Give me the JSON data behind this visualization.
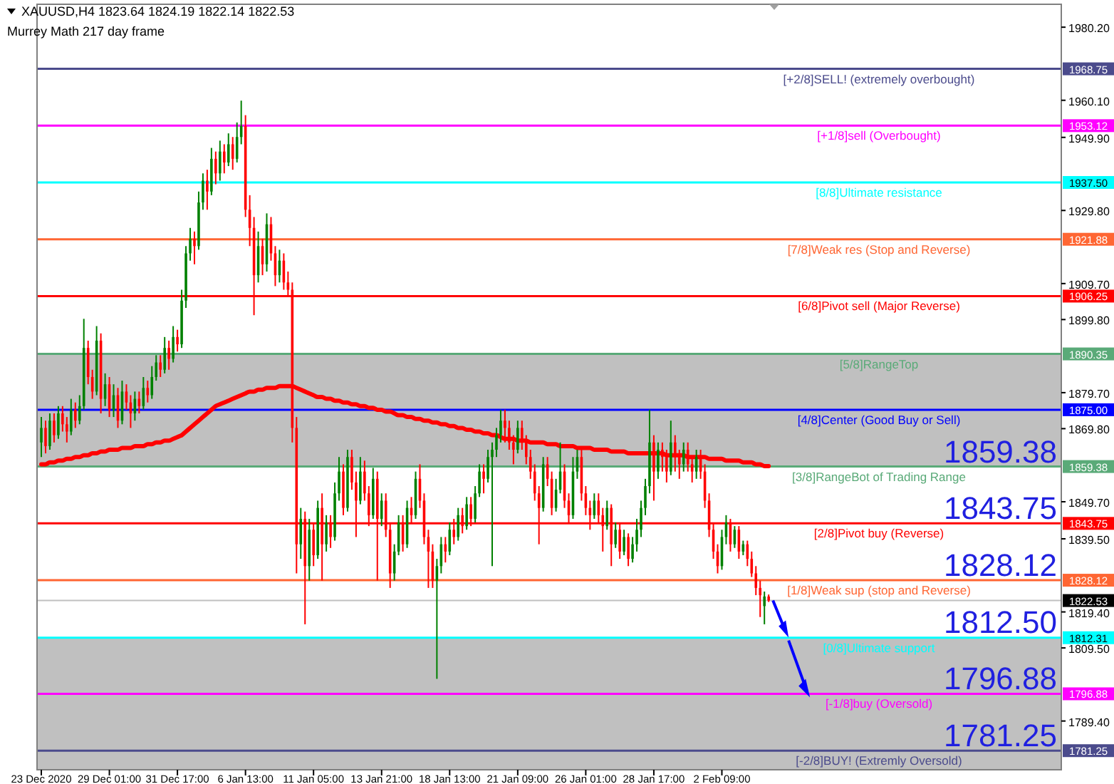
{
  "chart_data": {
    "type": "candlestick",
    "title": "XAUUSD,H4  1823.64 1824.19 1822.14 1822.53",
    "subtitle": "Murrey Math 217 day frame",
    "categories": [
      "23 Dec 2020",
      null,
      null,
      null,
      null,
      null,
      null,
      null,
      null,
      null,
      null,
      null,
      null,
      null,
      null,
      null,
      "29 Dec 01:00",
      null,
      null,
      null,
      null,
      null,
      null,
      null,
      null,
      null,
      null,
      null,
      null,
      null,
      null,
      null,
      "31 Dec 17:00",
      null,
      null,
      null,
      null,
      null,
      null,
      null,
      null,
      null,
      null,
      null,
      null,
      null,
      null,
      null,
      "6 Jan 13:00",
      null,
      null,
      null,
      null,
      null,
      null,
      null,
      null,
      null,
      null,
      null,
      null,
      null,
      null,
      null,
      "11 Jan 05:00",
      null,
      null,
      null,
      null,
      null,
      null,
      null,
      null,
      null,
      null,
      null,
      null,
      null,
      null,
      null,
      "13 Jan 21:00",
      null,
      null,
      null,
      null,
      null,
      null,
      null,
      null,
      null,
      null,
      null,
      null,
      null,
      null,
      null,
      "18 Jan 13:00",
      null,
      null,
      null,
      null,
      null,
      null,
      null,
      null,
      null,
      null,
      null,
      null,
      null,
      null,
      null,
      "21 Jan 09:00",
      null,
      null,
      null,
      null,
      null,
      null,
      null,
      null,
      null,
      null,
      null,
      null,
      null,
      null,
      null,
      "26 Jan 01:00",
      null,
      null,
      null,
      null,
      null,
      null,
      null,
      null,
      null,
      null,
      null,
      null,
      null,
      null,
      null,
      "28 Jan 17:00",
      null,
      null,
      null,
      null,
      null,
      null,
      null,
      null,
      null,
      null,
      null,
      null,
      null,
      null,
      null,
      "2 Feb 09:00",
      null,
      null,
      null,
      null,
      null,
      null,
      null,
      null,
      null,
      null,
      null
    ],
    "ohlc": [
      [
        1866,
        1873,
        1862,
        1870
      ],
      [
        1870,
        1872,
        1863,
        1865
      ],
      [
        1865,
        1874,
        1864,
        1872
      ],
      [
        1872,
        1874,
        1866,
        1868
      ],
      [
        1868,
        1876,
        1867,
        1874
      ],
      [
        1874,
        1876,
        1869,
        1871
      ],
      [
        1871,
        1873,
        1866,
        1869
      ],
      [
        1869,
        1878,
        1868,
        1875
      ],
      [
        1875,
        1877,
        1870,
        1872
      ],
      [
        1872,
        1879,
        1871,
        1876
      ],
      [
        1876,
        1900,
        1875,
        1892
      ],
      [
        1892,
        1894,
        1882,
        1884
      ],
      [
        1884,
        1886,
        1878,
        1880
      ],
      [
        1880,
        1898,
        1879,
        1894
      ],
      [
        1894,
        1896,
        1874,
        1878
      ],
      [
        1878,
        1885,
        1876,
        1882
      ],
      [
        1882,
        1884,
        1873,
        1875
      ],
      [
        1875,
        1882,
        1873,
        1879
      ],
      [
        1879,
        1881,
        1870,
        1872
      ],
      [
        1872,
        1883,
        1871,
        1880
      ],
      [
        1880,
        1882,
        1875,
        1877
      ],
      [
        1877,
        1879,
        1870,
        1874
      ],
      [
        1874,
        1880,
        1872,
        1878
      ],
      [
        1878,
        1880,
        1874,
        1876
      ],
      [
        1876,
        1884,
        1875,
        1881
      ],
      [
        1881,
        1883,
        1877,
        1879
      ],
      [
        1879,
        1887,
        1878,
        1884
      ],
      [
        1884,
        1890,
        1883,
        1888
      ],
      [
        1888,
        1890,
        1884,
        1886
      ],
      [
        1886,
        1895,
        1885,
        1892
      ],
      [
        1892,
        1894,
        1886,
        1889
      ],
      [
        1889,
        1898,
        1888,
        1895
      ],
      [
        1895,
        1897,
        1891,
        1893
      ],
      [
        1893,
        1908,
        1892,
        1905
      ],
      [
        1905,
        1920,
        1903,
        1918
      ],
      [
        1918,
        1925,
        1916,
        1922
      ],
      [
        1922,
        1924,
        1915,
        1920
      ],
      [
        1920,
        1935,
        1919,
        1932
      ],
      [
        1932,
        1940,
        1930,
        1938
      ],
      [
        1938,
        1941,
        1930,
        1935
      ],
      [
        1935,
        1947,
        1934,
        1944
      ],
      [
        1944,
        1946,
        1937,
        1940
      ],
      [
        1940,
        1949,
        1938,
        1946
      ],
      [
        1946,
        1948,
        1940,
        1943
      ],
      [
        1943,
        1951,
        1942,
        1948
      ],
      [
        1948,
        1950,
        1941,
        1944
      ],
      [
        1944,
        1954,
        1943,
        1950
      ],
      [
        1950,
        1960,
        1948,
        1953
      ],
      [
        1953,
        1956,
        1928,
        1930
      ],
      [
        1930,
        1934,
        1920,
        1925
      ],
      [
        1925,
        1928,
        1901,
        1912
      ],
      [
        1912,
        1924,
        1910,
        1920
      ],
      [
        1920,
        1922,
        1912,
        1915
      ],
      [
        1915,
        1929,
        1913,
        1926
      ],
      [
        1926,
        1928,
        1916,
        1918
      ],
      [
        1918,
        1920,
        1909,
        1912
      ],
      [
        1912,
        1919,
        1910,
        1916
      ],
      [
        1916,
        1918,
        1908,
        1910
      ],
      [
        1910,
        1913,
        1906,
        1908
      ],
      [
        1908,
        1910,
        1866,
        1870
      ],
      [
        1870,
        1873,
        1830,
        1838
      ],
      [
        1838,
        1848,
        1834,
        1845
      ],
      [
        1845,
        1847,
        1816,
        1832
      ],
      [
        1832,
        1845,
        1828,
        1842
      ],
      [
        1842,
        1844,
        1832,
        1835
      ],
      [
        1835,
        1850,
        1834,
        1848
      ],
      [
        1848,
        1852,
        1828,
        1838
      ],
      [
        1838,
        1846,
        1836,
        1844
      ],
      [
        1844,
        1846,
        1837,
        1840
      ],
      [
        1840,
        1855,
        1839,
        1852
      ],
      [
        1852,
        1862,
        1850,
        1858
      ],
      [
        1858,
        1860,
        1846,
        1848
      ],
      [
        1848,
        1864,
        1847,
        1862
      ],
      [
        1862,
        1864,
        1853,
        1855
      ],
      [
        1855,
        1858,
        1840,
        1850
      ],
      [
        1850,
        1862,
        1849,
        1858
      ],
      [
        1858,
        1861,
        1850,
        1852
      ],
      [
        1852,
        1854,
        1843,
        1846
      ],
      [
        1846,
        1859,
        1845,
        1856
      ],
      [
        1856,
        1858,
        1828,
        1845
      ],
      [
        1845,
        1852,
        1843,
        1850
      ],
      [
        1850,
        1852,
        1840,
        1842
      ],
      [
        1842,
        1844,
        1826,
        1830
      ],
      [
        1830,
        1838,
        1828,
        1836
      ],
      [
        1836,
        1846,
        1835,
        1844
      ],
      [
        1844,
        1846,
        1836,
        1838
      ],
      [
        1838,
        1850,
        1837,
        1848
      ],
      [
        1848,
        1851,
        1844,
        1846
      ],
      [
        1846,
        1858,
        1845,
        1856
      ],
      [
        1856,
        1860,
        1848,
        1850
      ],
      [
        1850,
        1852,
        1838,
        1840
      ],
      [
        1840,
        1842,
        1826,
        1836
      ],
      [
        1836,
        1838,
        1826,
        1828
      ],
      [
        1828,
        1834,
        1801,
        1832
      ],
      [
        1832,
        1840,
        1830,
        1838
      ],
      [
        1838,
        1840,
        1833,
        1836
      ],
      [
        1836,
        1844,
        1835,
        1842
      ],
      [
        1842,
        1845,
        1838,
        1840
      ],
      [
        1840,
        1848,
        1839,
        1846
      ],
      [
        1846,
        1848,
        1841,
        1843
      ],
      [
        1843,
        1851,
        1842,
        1849
      ],
      [
        1849,
        1851,
        1843,
        1845
      ],
      [
        1845,
        1854,
        1844,
        1852
      ],
      [
        1852,
        1860,
        1851,
        1858
      ],
      [
        1858,
        1860,
        1852,
        1856
      ],
      [
        1856,
        1864,
        1855,
        1862
      ],
      [
        1862,
        1866,
        1832,
        1864
      ],
      [
        1864,
        1870,
        1862,
        1868
      ],
      [
        1868,
        1875,
        1866,
        1872
      ],
      [
        1872,
        1875,
        1866,
        1870
      ],
      [
        1870,
        1872,
        1864,
        1866
      ],
      [
        1866,
        1868,
        1860,
        1864
      ],
      [
        1864,
        1872,
        1863,
        1870
      ],
      [
        1870,
        1872,
        1864,
        1866
      ],
      [
        1866,
        1868,
        1860,
        1862
      ],
      [
        1862,
        1864,
        1856,
        1858
      ],
      [
        1858,
        1860,
        1850,
        1852
      ],
      [
        1852,
        1854,
        1838,
        1848
      ],
      [
        1848,
        1862,
        1847,
        1860
      ],
      [
        1860,
        1862,
        1854,
        1856
      ],
      [
        1856,
        1858,
        1846,
        1848
      ],
      [
        1848,
        1856,
        1847,
        1853
      ],
      [
        1853,
        1866,
        1852,
        1858
      ],
      [
        1858,
        1860,
        1848,
        1850
      ],
      [
        1850,
        1852,
        1844,
        1846
      ],
      [
        1846,
        1862,
        1845,
        1858
      ],
      [
        1858,
        1864,
        1856,
        1862
      ],
      [
        1862,
        1864,
        1850,
        1852
      ],
      [
        1852,
        1854,
        1846,
        1848
      ],
      [
        1848,
        1850,
        1842,
        1846
      ],
      [
        1846,
        1852,
        1845,
        1850
      ],
      [
        1850,
        1852,
        1844,
        1846
      ],
      [
        1846,
        1848,
        1836,
        1843
      ],
      [
        1843,
        1850,
        1842,
        1848
      ],
      [
        1848,
        1849,
        1832,
        1838
      ],
      [
        1838,
        1844,
        1837,
        1842
      ],
      [
        1842,
        1844,
        1834,
        1836
      ],
      [
        1836,
        1842,
        1835,
        1840
      ],
      [
        1840,
        1841,
        1832,
        1834
      ],
      [
        1834,
        1840,
        1833,
        1838
      ],
      [
        1838,
        1845,
        1836,
        1842
      ],
      [
        1842,
        1850,
        1840,
        1848
      ],
      [
        1848,
        1856,
        1846,
        1854
      ],
      [
        1854,
        1875,
        1852,
        1866
      ],
      [
        1866,
        1868,
        1850,
        1858
      ],
      [
        1858,
        1866,
        1856,
        1864
      ],
      [
        1864,
        1866,
        1858,
        1862
      ],
      [
        1862,
        1864,
        1855,
        1858
      ],
      [
        1858,
        1872,
        1857,
        1866
      ],
      [
        1866,
        1868,
        1858,
        1862
      ],
      [
        1862,
        1864,
        1856,
        1860
      ],
      [
        1860,
        1866,
        1858,
        1864
      ],
      [
        1864,
        1866,
        1858,
        1860
      ],
      [
        1860,
        1862,
        1855,
        1858
      ],
      [
        1858,
        1864,
        1856,
        1862
      ],
      [
        1862,
        1864,
        1856,
        1858
      ],
      [
        1858,
        1860,
        1848,
        1850
      ],
      [
        1850,
        1852,
        1840,
        1842
      ],
      [
        1842,
        1844,
        1834,
        1836
      ],
      [
        1836,
        1838,
        1830,
        1832
      ],
      [
        1832,
        1842,
        1831,
        1840
      ],
      [
        1840,
        1846,
        1838,
        1844
      ],
      [
        1844,
        1845,
        1836,
        1838
      ],
      [
        1838,
        1843,
        1837,
        1842
      ],
      [
        1842,
        1843,
        1834,
        1836
      ],
      [
        1836,
        1839,
        1835,
        1838
      ],
      [
        1838,
        1839,
        1832,
        1834
      ],
      [
        1834,
        1836,
        1829,
        1830
      ],
      [
        1830,
        1832,
        1824,
        1826
      ],
      [
        1826,
        1828,
        1818,
        1824
      ],
      [
        1821,
        1825,
        1816,
        1823.64
      ],
      [
        1823.64,
        1824.19,
        1822.14,
        1822.53
      ]
    ],
    "series": [
      {
        "type": "line",
        "color": "#ff0000",
        "values": [
          1860,
          1860,
          1860.5,
          1860.5,
          1861,
          1861,
          1861.5,
          1861.5,
          1862,
          1862,
          1862.5,
          1862.5,
          1863,
          1863,
          1863.5,
          1863.5,
          1864,
          1864,
          1864,
          1864.5,
          1864.5,
          1864.5,
          1865,
          1865,
          1865,
          1865.5,
          1865.5,
          1866,
          1866,
          1866.5,
          1866.5,
          1867,
          1867.5,
          1868,
          1869,
          1870,
          1871,
          1872,
          1873,
          1874,
          1875,
          1876,
          1876.5,
          1877,
          1877.5,
          1878,
          1878.5,
          1879,
          1879.5,
          1880,
          1880,
          1880.5,
          1880.5,
          1881,
          1881,
          1881,
          1881.5,
          1881.5,
          1881.5,
          1881.5,
          1881,
          1880.5,
          1880,
          1879.5,
          1879,
          1878.5,
          1878.5,
          1878,
          1878,
          1877.5,
          1877.5,
          1877,
          1877,
          1876.5,
          1876.5,
          1876,
          1876,
          1875.5,
          1875.5,
          1875,
          1875,
          1874.5,
          1874.5,
          1874,
          1873.5,
          1873.5,
          1873,
          1873,
          1872.5,
          1872.5,
          1872,
          1872,
          1871.5,
          1871.5,
          1871,
          1871,
          1870.5,
          1870.5,
          1870,
          1870,
          1869.5,
          1869.5,
          1869,
          1869,
          1868.5,
          1868.5,
          1868,
          1868,
          1867.5,
          1867,
          1867,
          1867,
          1866.5,
          1866.5,
          1866.5,
          1866,
          1866,
          1866,
          1866,
          1865.5,
          1865.5,
          1865.5,
          1865,
          1865,
          1865,
          1865,
          1864.5,
          1864.5,
          1864.5,
          1864.5,
          1864,
          1864,
          1864,
          1864,
          1863.5,
          1863.5,
          1863.5,
          1863.5,
          1863,
          1863,
          1863,
          1863,
          1863,
          1863,
          1863,
          1863,
          1863,
          1862.5,
          1862.5,
          1862.5,
          1862.5,
          1862.5,
          1862,
          1862,
          1862,
          1862,
          1862,
          1861.5,
          1861.5,
          1861.5,
          1861.5,
          1861,
          1861,
          1861,
          1861,
          1860.5,
          1860.5,
          1860.5,
          1860,
          1860,
          1859.5,
          1859.5
        ]
      }
    ],
    "ylim": [
      1776,
      1986.5
    ],
    "yticks": [
      {
        "value": 1789.4,
        "label": "1789.40"
      },
      {
        "value": 1809.5,
        "label": "1809.50"
      },
      {
        "value": 1819.4,
        "label": "1819.40"
      },
      {
        "value": 1839.5,
        "label": "1839.50"
      },
      {
        "value": 1849.7,
        "label": "1849.70"
      },
      {
        "value": 1869.8,
        "label": "1869.80"
      },
      {
        "value": 1879.7,
        "label": "1879.70"
      },
      {
        "value": 1899.8,
        "label": "1899.80"
      },
      {
        "value": 1909.7,
        "label": "1909.70"
      },
      {
        "value": 1929.8,
        "label": "1929.80"
      },
      {
        "value": 1949.9,
        "label": "1949.90"
      },
      {
        "value": 1960.1,
        "label": "1960.10"
      },
      {
        "value": 1980.2,
        "label": "1980.20"
      }
    ],
    "ref_lines": [
      {
        "axis": "y",
        "value": 1968.75,
        "label": "1968.75",
        "color": "#4b4b8c"
      },
      {
        "axis": "y",
        "value": 1953.12,
        "label": "1953.12",
        "color": "#ff00ff"
      },
      {
        "axis": "y",
        "value": 1937.5,
        "label": "1937.50",
        "color": "#00ffff"
      },
      {
        "axis": "y",
        "value": 1921.88,
        "label": "1921.88",
        "color": "#ff6633"
      },
      {
        "axis": "y",
        "value": 1906.25,
        "label": "1906.25",
        "color": "#ff0000"
      },
      {
        "axis": "y",
        "value": 1890.35,
        "label": "1890.35",
        "color": "#5aaa78"
      },
      {
        "axis": "y",
        "value": 1875.0,
        "label": "1875.00",
        "color": "#0000ff"
      },
      {
        "axis": "y",
        "value": 1859.38,
        "label": "1859.38",
        "color": "#5aaa78"
      },
      {
        "axis": "y",
        "value": 1843.75,
        "label": "1843.75",
        "color": "#ff0000"
      },
      {
        "axis": "y",
        "value": 1828.12,
        "label": "1828.12",
        "color": "#ff6633"
      },
      {
        "axis": "y",
        "value": 1812.31,
        "label": "1812.31",
        "color": "#00ffff"
      },
      {
        "axis": "y",
        "value": 1796.88,
        "label": "1796.88",
        "color": "#ff00ff"
      },
      {
        "axis": "y",
        "value": 1781.25,
        "label": "1781.25",
        "color": "#4b4b8c"
      },
      {
        "axis": "y",
        "value": 1822.53,
        "label": "1822.53",
        "color": "#c0c0c0"
      }
    ],
    "bands": [
      {
        "axis": "y",
        "from": 1859.38,
        "to": 1890.35,
        "color": "#c0c0c0"
      },
      {
        "axis": "y",
        "from": 1776,
        "to": 1812.31,
        "color": "#c0c0c0"
      }
    ],
    "annotations": [
      {
        "text": "[+2/8]SELL! (extremely overbought)",
        "y": 1968.75
      },
      {
        "text": "[+1/8]sell (Overbought)",
        "y": 1953.12
      },
      {
        "text": "[8/8]Ultimate resistance",
        "y": 1937.5
      },
      {
        "text": "[7/8]Weak res (Stop and Reverse)",
        "y": 1921.88
      },
      {
        "text": "[6/8]Pivot sell (Major Reverse)",
        "y": 1906.25
      },
      {
        "text": "[5/8]RangeTop",
        "y": 1890.35
      },
      {
        "text": "[4/8]Center (Good Buy or Sell)",
        "y": 1875.0
      },
      {
        "text": "[3/8]RangeBot of Trading Range",
        "y": 1859.38
      },
      {
        "text": "[2/8]Pivot buy (Reverse)",
        "y": 1843.75
      },
      {
        "text": "[1/8]Weak sup (stop and Reverse)",
        "y": 1828.12
      },
      {
        "text": "[0/8]Ultimate support",
        "y": 1812.31
      },
      {
        "text": "[-1/8]buy (Oversold)",
        "y": 1796.88
      },
      {
        "text": "[-2/8]BUY! (Extremly Oversold)",
        "y": 1781.25
      },
      {
        "text": "1859.38",
        "y": 1859.38
      },
      {
        "text": "1843.75",
        "y": 1843.75
      },
      {
        "text": "1828.12",
        "y": 1828.12
      },
      {
        "text": "1812.50",
        "y": 1812.5
      },
      {
        "text": "1796.88",
        "y": 1796.88
      },
      {
        "text": "1781.25",
        "y": 1781.25
      }
    ]
  }
}
